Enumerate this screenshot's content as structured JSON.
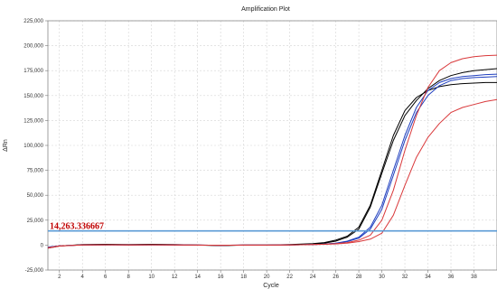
{
  "chart_data": {
    "type": "line",
    "title": "Amplification Plot",
    "xlabel": "Cycle",
    "ylabel": "ΔRn",
    "xlim": [
      1,
      40
    ],
    "ylim": [
      -25000,
      225000
    ],
    "x_ticks": [
      2,
      4,
      6,
      8,
      10,
      12,
      14,
      16,
      18,
      20,
      22,
      24,
      26,
      28,
      30,
      32,
      34,
      36,
      38
    ],
    "y_ticks": [
      -25000,
      0,
      25000,
      50000,
      75000,
      100000,
      125000,
      150000,
      175000,
      200000,
      225000
    ],
    "y_tick_labels": [
      "-25,000",
      "0",
      "25,000",
      "50,000",
      "75,000",
      "100,000",
      "125,000",
      "150,000",
      "175,000",
      "200,000",
      "225,000"
    ],
    "grid": true,
    "threshold": {
      "value": 14263.336667,
      "label": "14,263.336667",
      "color": "#5b9bd5",
      "label_color": "#c00000"
    },
    "x": [
      1,
      2,
      4,
      6,
      8,
      10,
      12,
      14,
      16,
      18,
      20,
      22,
      23,
      24,
      25,
      26,
      27,
      28,
      29,
      30,
      31,
      32,
      33,
      34,
      35,
      36,
      37,
      38,
      39,
      40
    ],
    "series": [
      {
        "color": "#000000",
        "values": [
          -3000,
          -1000,
          500,
          800,
          500,
          800,
          500,
          0,
          -500,
          0,
          0,
          500,
          1000,
          1500,
          2500,
          5000,
          9000,
          18000,
          40000,
          75000,
          110000,
          135000,
          148000,
          155000,
          159000,
          161000,
          162000,
          162500,
          163000,
          163000
        ]
      },
      {
        "color": "#000000",
        "values": [
          -2500,
          -800,
          300,
          500,
          300,
          500,
          300,
          0,
          -300,
          0,
          0,
          300,
          700,
          1200,
          2000,
          4000,
          8000,
          16000,
          38000,
          72000,
          105000,
          130000,
          145000,
          157000,
          165000,
          170000,
          173000,
          175000,
          176000,
          177000
        ]
      },
      {
        "color": "#1f3fbf",
        "values": [
          -2000,
          -700,
          200,
          300,
          200,
          300,
          200,
          0,
          -200,
          0,
          0,
          200,
          400,
          600,
          1000,
          2000,
          4000,
          8000,
          18000,
          40000,
          75000,
          110000,
          138000,
          155000,
          163000,
          167000,
          169000,
          170000,
          171000,
          171500
        ]
      },
      {
        "color": "#1f3fbf",
        "values": [
          -2000,
          -700,
          200,
          300,
          200,
          300,
          200,
          0,
          -200,
          0,
          0,
          200,
          400,
          600,
          900,
          1800,
          3500,
          7000,
          16000,
          36000,
          70000,
          105000,
          133000,
          150000,
          160000,
          165000,
          167000,
          168000,
          168500,
          169000
        ]
      },
      {
        "color": "#d9383a",
        "values": [
          -2500,
          -800,
          200,
          300,
          200,
          300,
          200,
          0,
          -200,
          0,
          0,
          200,
          400,
          600,
          900,
          1500,
          2500,
          5000,
          10000,
          25000,
          55000,
          95000,
          130000,
          158000,
          175000,
          183000,
          187000,
          189000,
          190000,
          190500
        ]
      },
      {
        "color": "#d9383a",
        "values": [
          -3000,
          -1000,
          200,
          300,
          200,
          300,
          200,
          0,
          -200,
          0,
          0,
          200,
          400,
          600,
          800,
          1200,
          2000,
          3500,
          6000,
          12000,
          30000,
          60000,
          88000,
          108000,
          122000,
          133000,
          138000,
          141000,
          144000,
          146000
        ]
      }
    ]
  }
}
